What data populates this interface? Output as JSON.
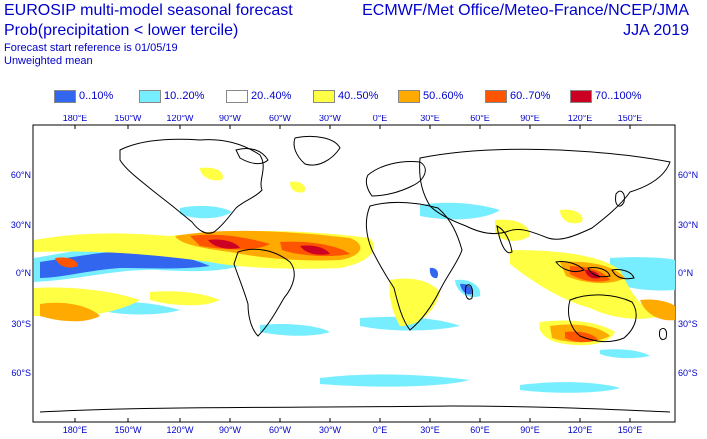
{
  "header": {
    "title_line1": "EUROSIP multi-model seasonal forecast",
    "title_line2": "Prob(precipitation < lower tercile)",
    "forecast_ref": "Forecast start reference is 01/05/19",
    "weighting": "Unweighted mean",
    "source": "ECMWF/Met Office/Meteo-France/NCEP/JMA",
    "period": "JJA 2019"
  },
  "legend": [
    {
      "label": "0..10%",
      "color": "#3366ee"
    },
    {
      "label": "10..20%",
      "color": "#77eeff"
    },
    {
      "label": "20..40%",
      "color": "#ffffff"
    },
    {
      "label": "40..50%",
      "color": "#ffff44"
    },
    {
      "label": "50..60%",
      "color": "#ffaa00"
    },
    {
      "label": "60..70%",
      "color": "#ff5500"
    },
    {
      "label": "70..100%",
      "color": "#cc0022"
    }
  ],
  "map": {
    "lon_labels": [
      "180°E",
      "150°W",
      "120°W",
      "90°W",
      "60°W",
      "30°W",
      "0°E",
      "30°E",
      "60°E",
      "90°E",
      "120°E",
      "150°E"
    ],
    "lat_labels": [
      "60°N",
      "30°N",
      "0°N",
      "30°S",
      "60°S"
    ]
  }
}
